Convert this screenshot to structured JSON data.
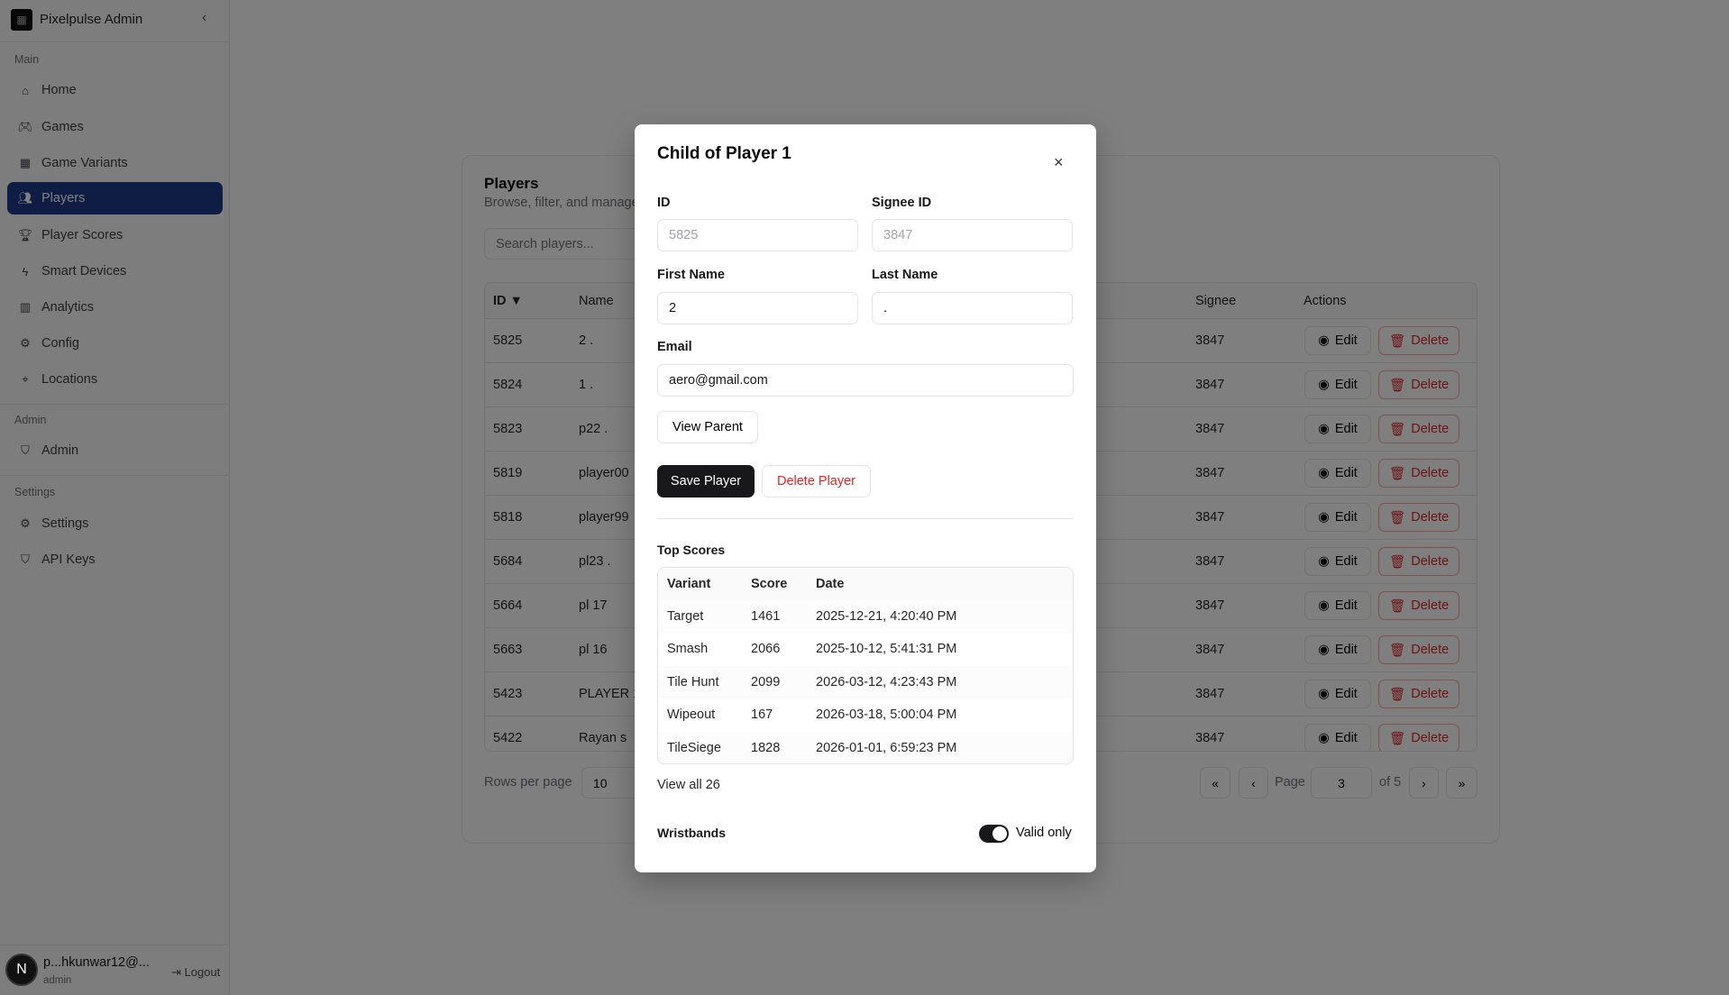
{
  "app": {
    "title": "Pixelpulse Admin"
  },
  "sidebar": {
    "sections": [
      {
        "label": "Main",
        "items": [
          {
            "label": "Home",
            "icon": "home-icon"
          },
          {
            "label": "Games",
            "icon": "gamepad-icon"
          },
          {
            "label": "Game Variants",
            "icon": "grid-icon"
          },
          {
            "label": "Players",
            "icon": "users-icon",
            "active": true
          },
          {
            "label": "Player Scores",
            "icon": "trophy-icon"
          },
          {
            "label": "Smart Devices",
            "icon": "zap-icon"
          },
          {
            "label": "Analytics",
            "icon": "bar-chart-icon"
          },
          {
            "label": "Config",
            "icon": "gear-icon"
          },
          {
            "label": "Locations",
            "icon": "map-pin-icon"
          }
        ]
      },
      {
        "label": "Admin",
        "items": [
          {
            "label": "Admin",
            "icon": "shield-icon"
          }
        ]
      },
      {
        "label": "Settings",
        "items": [
          {
            "label": "Settings",
            "icon": "gear-icon"
          },
          {
            "label": "API Keys",
            "icon": "shield-icon"
          }
        ]
      }
    ],
    "user": {
      "email": "p...hkunwar12@...",
      "role": "admin",
      "avatar": "N",
      "logout": "Logout"
    }
  },
  "players": {
    "title": "Players",
    "subtitle": "Browse, filter, and manage",
    "search_placeholder": "Search players...",
    "columns": {
      "id": "ID ▼",
      "name": "Name",
      "signee": "Signee",
      "actions": "Actions"
    },
    "edit_label": "Edit",
    "delete_label": "Delete",
    "rows": [
      {
        "id": "5825",
        "name": "2 .",
        "signee": "3847"
      },
      {
        "id": "5824",
        "name": "1 .",
        "signee": "3847"
      },
      {
        "id": "5823",
        "name": "p22 .",
        "signee": "3847"
      },
      {
        "id": "5819",
        "name": "player00",
        "signee": "3847"
      },
      {
        "id": "5818",
        "name": "player99",
        "signee": "3847"
      },
      {
        "id": "5684",
        "name": "pl23 .",
        "signee": "3847"
      },
      {
        "id": "5664",
        "name": "pl 17",
        "signee": "3847"
      },
      {
        "id": "5663",
        "name": "pl 16",
        "signee": "3847"
      },
      {
        "id": "5423",
        "name": "PLAYER 1",
        "signee": "3847"
      },
      {
        "id": "5422",
        "name": "Rayan s",
        "signee": "3847"
      }
    ],
    "pagination": {
      "rows_per_page_label": "Rows per page",
      "rows_per_page": "10",
      "first": "«",
      "prev": "‹",
      "page_label": "Page",
      "page": "3",
      "of_label": "of 5",
      "next": "›",
      "last": "»"
    }
  },
  "modal": {
    "title": "Child of Player 1",
    "close": "×",
    "fields": {
      "id_label": "ID",
      "id": "5825",
      "signee_label": "Signee ID",
      "signee": "3847",
      "first_label": "First Name",
      "first": "2",
      "last_label": "Last Name",
      "last": ".",
      "email_label": "Email",
      "email": "aero@gmail.com"
    },
    "view_parent": "View Parent",
    "save": "Save Player",
    "delete": "Delete Player",
    "top_scores": {
      "title": "Top Scores",
      "columns": [
        "Variant",
        "Score",
        "Date"
      ],
      "rows": [
        [
          "Target",
          "1461",
          "2025-12-21, 4:20:40 PM"
        ],
        [
          "Smash",
          "2066",
          "2025-10-12, 5:41:31 PM"
        ],
        [
          "Tile Hunt",
          "2099",
          "2026-03-12, 4:23:43 PM"
        ],
        [
          "Wipeout",
          "167",
          "2026-03-18, 5:00:04 PM"
        ],
        [
          "TileSiege",
          "1828",
          "2026-01-01, 6:59:23 PM"
        ]
      ],
      "view_all": "View all 26"
    },
    "wristbands": {
      "title": "Wristbands",
      "toggle_label": "Valid only",
      "toggle_on": true
    }
  },
  "colors": {
    "active_nav": "#1e3a8a",
    "danger": "#dc2626",
    "primary": "#18181b"
  }
}
